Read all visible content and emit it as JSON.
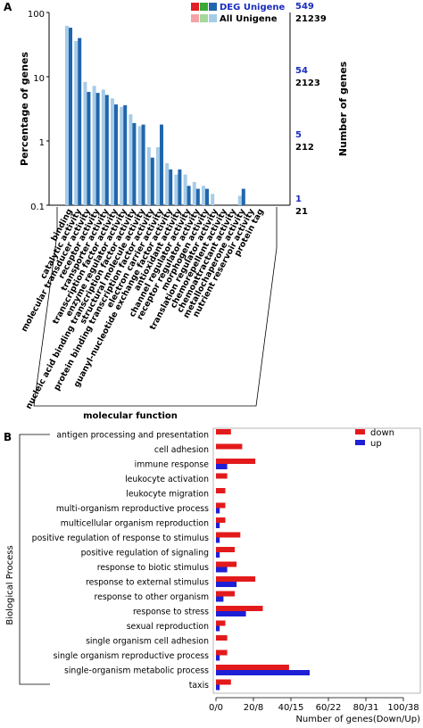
{
  "figure": {
    "panels": [
      "A",
      "B"
    ]
  },
  "chart_data": [
    {
      "panel": "A",
      "type": "bar",
      "y_scale": "log",
      "ylabel": "Percentage of genes",
      "ylabel_right": "Number of genes",
      "xlabel": "molecular function",
      "y_ticks": [
        "100",
        "10",
        "1",
        "0.1"
      ],
      "ylim": [
        0.1,
        100
      ],
      "right_ticks_deg": [
        "549",
        "54",
        "5",
        "1"
      ],
      "right_ticks_all": [
        "21239",
        "2123",
        "212",
        "21"
      ],
      "legend": {
        "position": "top-right",
        "deg_label": "DEG Unigene",
        "all_label": "All Unigene",
        "deg_colors": [
          "#e21f26",
          "#3aa935",
          "#2166ac"
        ],
        "all_colors": [
          "#f4a3a8",
          "#a6d89b",
          "#a6cce8"
        ]
      },
      "colors": {
        "deg": "#2166ac",
        "all": "#a6cce8",
        "deg_axis_text": "#1a2dbf"
      },
      "categories": [
        "binding",
        "catalytic activity",
        "molecular transducer activity",
        "receptor activity",
        "transporter activity",
        "transcription factor activity",
        "enzyme regulator activity",
        "nucleic acid binding transcription factor activity",
        "structural molecule activity",
        "protein binding transcription factor activity",
        "electron carrier activity",
        "guanyl-nucleotide exchange factor activity",
        "antioxidant activity",
        "channel regulator activity",
        "receptor regulator activity",
        "morphogen activity",
        "translation regulator activity",
        "chemorepellent activity",
        "chemoattractant activity",
        "metallochaperone activity",
        "nutrient reservoir activity",
        "protein tag"
      ],
      "series": [
        {
          "name": "All Unigene",
          "values": [
            62,
            36,
            8.3,
            7.2,
            6.3,
            4.6,
            3.4,
            2.6,
            1.7,
            0.8,
            0.8,
            0.45,
            0.3,
            0.3,
            0.23,
            0.2,
            0.15,
            null,
            null,
            0.14,
            null,
            null
          ]
        },
        {
          "name": "DEG Unigene",
          "values": [
            58,
            40,
            5.8,
            5.6,
            5.2,
            3.7,
            3.6,
            1.9,
            1.8,
            0.55,
            1.8,
            0.36,
            0.36,
            0.2,
            0.18,
            0.18,
            null,
            null,
            null,
            0.18,
            null,
            null
          ]
        }
      ]
    },
    {
      "panel": "B",
      "type": "bar",
      "orientation": "horizontal",
      "ylabel": "Biological Process",
      "xlabel": "Number of genes(Down/Up)",
      "x_ticks": [
        "0/0",
        "20/8",
        "40/15",
        "60/22",
        "80/31",
        "100/38"
      ],
      "xlim": [
        0,
        100
      ],
      "legend": {
        "position": "top-right",
        "down_label": "down",
        "up_label": "up"
      },
      "colors": {
        "down": "#e31a1c",
        "up": "#1f1fd6"
      },
      "categories": [
        "antigen processing and presentation",
        "cell adhesion",
        "immune response",
        "leukocyte activation",
        "leukocyte migration",
        "multi-organism reproductive process",
        "multicellular organism reproduction",
        "positive regulation of response to stimulus",
        "positive regulation of signaling",
        "response to biotic stimulus",
        "response to external stimulus",
        "response to other organism",
        "response to stress",
        "sexual reproduction",
        "single organism cell adhesion",
        "single organism reproductive process",
        "single-organism metabolic process",
        "taxis"
      ],
      "series": [
        {
          "name": "down",
          "values": [
            8,
            14,
            21,
            6,
            5,
            5,
            5,
            13,
            10,
            11,
            21,
            10,
            25,
            5,
            6,
            6,
            39,
            8
          ]
        },
        {
          "name": "up",
          "values": [
            0,
            0,
            6,
            0,
            0,
            2,
            2,
            2,
            2,
            6,
            11,
            4,
            16,
            2,
            0,
            2,
            50,
            2
          ]
        }
      ]
    }
  ]
}
